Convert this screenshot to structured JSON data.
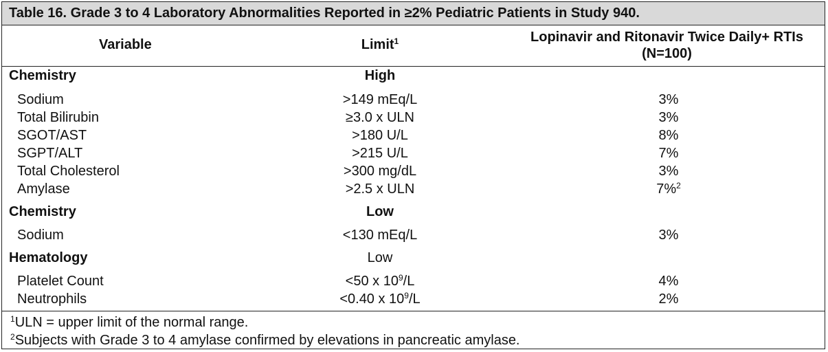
{
  "title": "Table 16. Grade 3 to 4 Laboratory Abnormalities Reported in ≥2% Pediatric Patients in Study 940.",
  "headers": {
    "variable": "Variable",
    "limit": "Limit",
    "limit_sup": "1",
    "col3_line1": "Lopinavir and Ritonavir Twice Daily+ RTIs",
    "col3_line2": "(N=100)"
  },
  "sections": [
    {
      "name": "Chemistry",
      "limit": "High",
      "rows": [
        {
          "variable": "Sodium",
          "limit": ">149 mEq/L",
          "value": "3%"
        },
        {
          "variable": "Total Bilirubin",
          "limit": "≥3.0 x ULN",
          "value": "3%"
        },
        {
          "variable": "SGOT/AST",
          "limit": ">180 U/L",
          "value": "8%"
        },
        {
          "variable": "SGPT/ALT",
          "limit": ">215 U/L",
          "value": "7%"
        },
        {
          "variable": "Total Cholesterol",
          "limit": ">300 mg/dL",
          "value": "3%"
        },
        {
          "variable": "Amylase",
          "limit": ">2.5 x ULN",
          "value": "7%",
          "value_sup": "2"
        }
      ]
    },
    {
      "name": "Chemistry",
      "limit": "Low",
      "rows": [
        {
          "variable": "Sodium",
          "limit": "<130 mEq/L",
          "value": "3%"
        }
      ]
    },
    {
      "name": "Hematology",
      "limit": "Low",
      "rows": [
        {
          "variable": "Platelet Count",
          "limit_pre": "<50 x 10",
          "limit_sup": "9",
          "limit_post": "/L",
          "value": "4%"
        },
        {
          "variable": "Neutrophils",
          "limit_pre": "<0.40 x 10",
          "limit_sup": "9",
          "limit_post": "/L",
          "value": "2%"
        }
      ]
    }
  ],
  "footnotes": [
    {
      "mark": "1",
      "text": "ULN = upper limit of the normal range."
    },
    {
      "mark": "2",
      "text": "Subjects with Grade 3 to 4 amylase confirmed by elevations in pancreatic amylase."
    }
  ]
}
